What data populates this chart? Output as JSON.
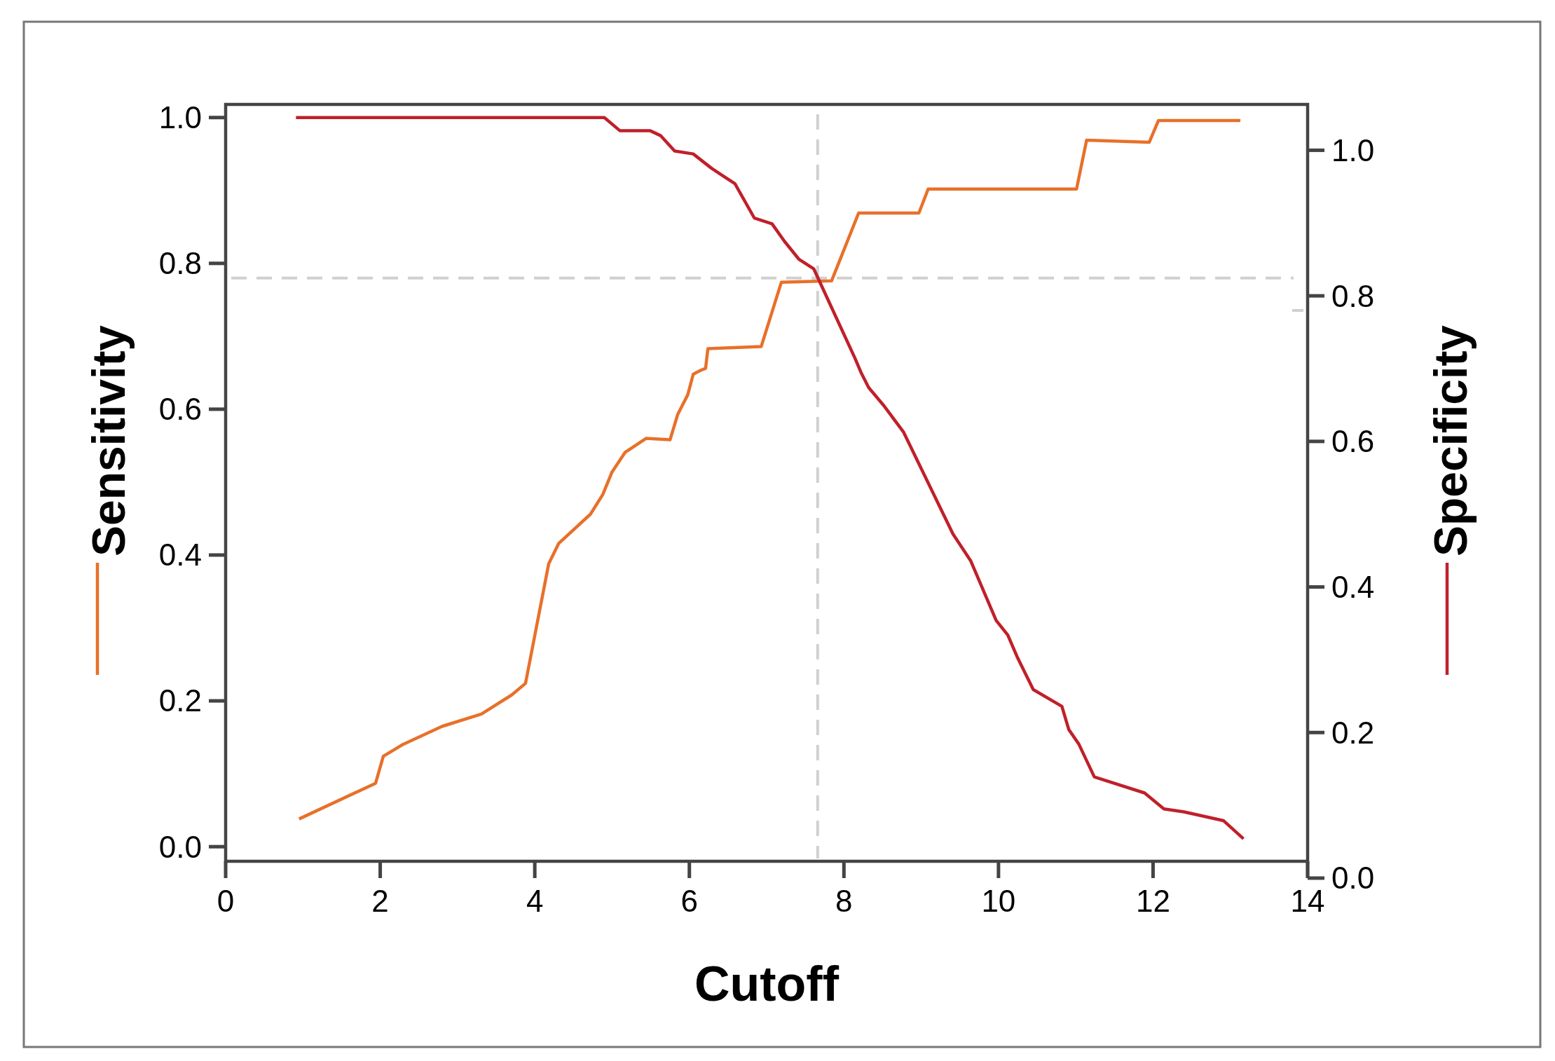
{
  "chart_data": {
    "type": "line",
    "xlabel": "Cutoff",
    "ylabel": "Sensitivity",
    "y2label": "Specificity",
    "xlim": [
      0,
      14
    ],
    "xticks": [
      0,
      2,
      4,
      6,
      8,
      10,
      12,
      14
    ],
    "ylim": [
      -0.02,
      1.018
    ],
    "yticks": [
      {
        "value": 0,
        "label": "0.0"
      },
      0.2,
      0.4,
      0.6,
      0.8,
      {
        "value": 1,
        "label": "1.0"
      }
    ],
    "y2lim": [
      0,
      1.063
    ],
    "y2ticks": [
      {
        "value": 0,
        "label": "0.0"
      },
      0.2,
      0.4,
      0.6,
      0.8,
      {
        "value": 1,
        "label": "1.0"
      }
    ],
    "grid": false,
    "line_style": "solid",
    "marker": "none",
    "series": [
      {
        "color": "#e8702a",
        "x": [
          0.95,
          1.94,
          2.04,
          2.18,
          2.29,
          2.8,
          3.31,
          3.7,
          3.88,
          4.18,
          4.31,
          4.72,
          4.88,
          5.0,
          5.17,
          5.44,
          5.75,
          5.85,
          5.98,
          6.05,
          6.14,
          6.21,
          6.24,
          6.93,
          7.19,
          7.84,
          8.19,
          8.97,
          9.09,
          11.01,
          11.14,
          11.95,
          12.07,
          13.13
        ],
        "values": [
          0.038,
          0.087,
          0.124,
          0.133,
          0.14,
          0.165,
          0.182,
          0.208,
          0.224,
          0.388,
          0.416,
          0.456,
          0.483,
          0.514,
          0.541,
          0.56,
          0.558,
          0.593,
          0.62,
          0.648,
          0.653,
          0.656,
          0.683,
          0.686,
          0.774,
          0.776,
          0.869,
          0.869,
          0.902,
          0.902,
          0.969,
          0.966,
          0.996,
          0.996
        ]
      },
      {
        "color": "#c0202a",
        "axis": "y2",
        "x": [
          0.91,
          4.9,
          5.1,
          5.49,
          5.63,
          5.81,
          6.05,
          6.29,
          6.59,
          6.84,
          7.07,
          7.23,
          7.42,
          7.61,
          8.14,
          8.22,
          8.32,
          8.51,
          8.77,
          9.41,
          9.64,
          9.97,
          10.12,
          10.25,
          10.45,
          10.82,
          10.91,
          11.04,
          11.24,
          11.89,
          12.14,
          12.4,
          12.91,
          13.17
        ],
        "values": [
          1.045,
          1.045,
          1.027,
          1.027,
          1.02,
          0.999,
          0.995,
          0.975,
          0.954,
          0.907,
          0.899,
          0.875,
          0.85,
          0.837,
          0.715,
          0.695,
          0.674,
          0.65,
          0.613,
          0.473,
          0.436,
          0.354,
          0.334,
          0.302,
          0.259,
          0.236,
          0.204,
          0.184,
          0.139,
          0.117,
          0.095,
          0.091,
          0.079,
          0.054
        ]
      }
    ],
    "ref_lines": [
      {
        "axis": "x",
        "value": 7.66,
        "color": "#d0d0d0",
        "line_style": "dashed"
      },
      {
        "axis": "y",
        "value": 0.78,
        "color": "#d0d0d0",
        "line_style": "dashed"
      }
    ]
  }
}
